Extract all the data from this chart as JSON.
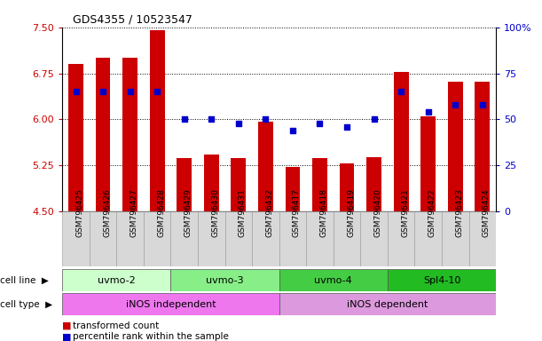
{
  "title": "GDS4355 / 10523547",
  "samples": [
    "GSM796425",
    "GSM796426",
    "GSM796427",
    "GSM796428",
    "GSM796429",
    "GSM796430",
    "GSM796431",
    "GSM796432",
    "GSM796417",
    "GSM796418",
    "GSM796419",
    "GSM796420",
    "GSM796421",
    "GSM796422",
    "GSM796423",
    "GSM796424"
  ],
  "transformed_count": [
    6.9,
    7.0,
    7.0,
    7.45,
    5.37,
    5.42,
    5.37,
    5.96,
    5.22,
    5.37,
    5.28,
    5.38,
    6.77,
    6.05,
    6.62,
    6.62
  ],
  "percentile_rank": [
    65,
    65,
    65,
    65,
    50,
    50,
    48,
    50,
    44,
    48,
    46,
    50,
    65,
    54,
    58,
    58
  ],
  "ymin": 4.5,
  "ymax": 7.5,
  "yticks": [
    4.5,
    5.25,
    6.0,
    6.75,
    7.5
  ],
  "right_yticks": [
    0,
    25,
    50,
    75,
    100
  ],
  "bar_color": "#cc0000",
  "dot_color": "#0000cc",
  "cell_lines": [
    {
      "label": "uvmo-2",
      "start": 0,
      "end": 4,
      "color": "#ccffcc"
    },
    {
      "label": "uvmo-3",
      "start": 4,
      "end": 8,
      "color": "#88ee88"
    },
    {
      "label": "uvmo-4",
      "start": 8,
      "end": 12,
      "color": "#44cc44"
    },
    {
      "label": "Spl4-10",
      "start": 12,
      "end": 16,
      "color": "#22bb22"
    }
  ],
  "cell_types": [
    {
      "label": "iNOS independent",
      "start": 0,
      "end": 8,
      "color": "#ee77ee"
    },
    {
      "label": "iNOS dependent",
      "start": 8,
      "end": 16,
      "color": "#dd99dd"
    }
  ],
  "bg_color": "#ffffff",
  "left_axis_color": "#cc0000",
  "right_axis_color": "#0000cc",
  "spine_color": "#000000"
}
